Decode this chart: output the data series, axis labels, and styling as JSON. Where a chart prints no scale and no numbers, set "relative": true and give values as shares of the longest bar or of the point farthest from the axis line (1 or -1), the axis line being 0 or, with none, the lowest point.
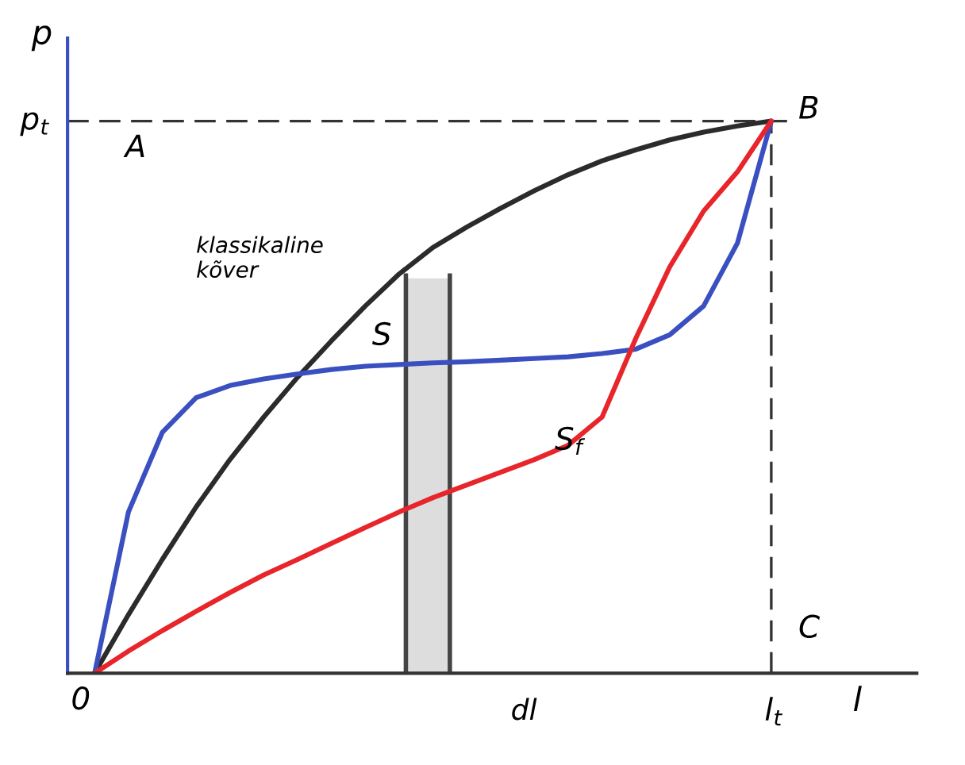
{
  "chart_data": {
    "type": "line",
    "relative": true,
    "xlabel": "l",
    "ylabel": "p",
    "marker": "none",
    "line_style": "solid",
    "categories": [
      null,
      null,
      null,
      null,
      null,
      null,
      null,
      null,
      null,
      null,
      null,
      null,
      null,
      null,
      null,
      null,
      null,
      null,
      null,
      null,
      null,
      null,
      null,
      null,
      null
    ],
    "series": [
      {
        "color": "#2b2b2b",
        "values": [
          0,
          0.106,
          0.206,
          0.301,
          0.387,
          0.464,
          0.536,
          0.602,
          0.665,
          0.723,
          0.771,
          0.808,
          0.842,
          0.874,
          0.903,
          0.928,
          0.948,
          0.966,
          0.98,
          0.991,
          1,
          null,
          null,
          null,
          null
        ]
      },
      {
        "color": "#3a4fc0",
        "values": [
          0,
          0.292,
          0.436,
          0.499,
          0.521,
          0.533,
          0.542,
          0.55,
          0.556,
          0.559,
          0.562,
          0.564,
          0.567,
          0.57,
          0.573,
          0.579,
          0.587,
          0.613,
          0.665,
          0.779,
          1,
          null,
          null,
          null,
          null
        ]
      },
      {
        "color": "#e8252a",
        "values": [
          0,
          0.04,
          0.077,
          0.112,
          0.146,
          0.178,
          0.206,
          0.235,
          0.264,
          0.292,
          0.318,
          0.341,
          0.364,
          0.387,
          0.413,
          0.464,
          0.607,
          0.736,
          0.837,
          0.908,
          1,
          null,
          null,
          null,
          null
        ]
      }
    ],
    "annotations": [
      "klassikaline\nkõver",
      "S",
      "S$_{f}$",
      "A",
      "B",
      "C",
      "0",
      "p$_{t}$",
      "l$_{t}$",
      "dl"
    ]
  }
}
